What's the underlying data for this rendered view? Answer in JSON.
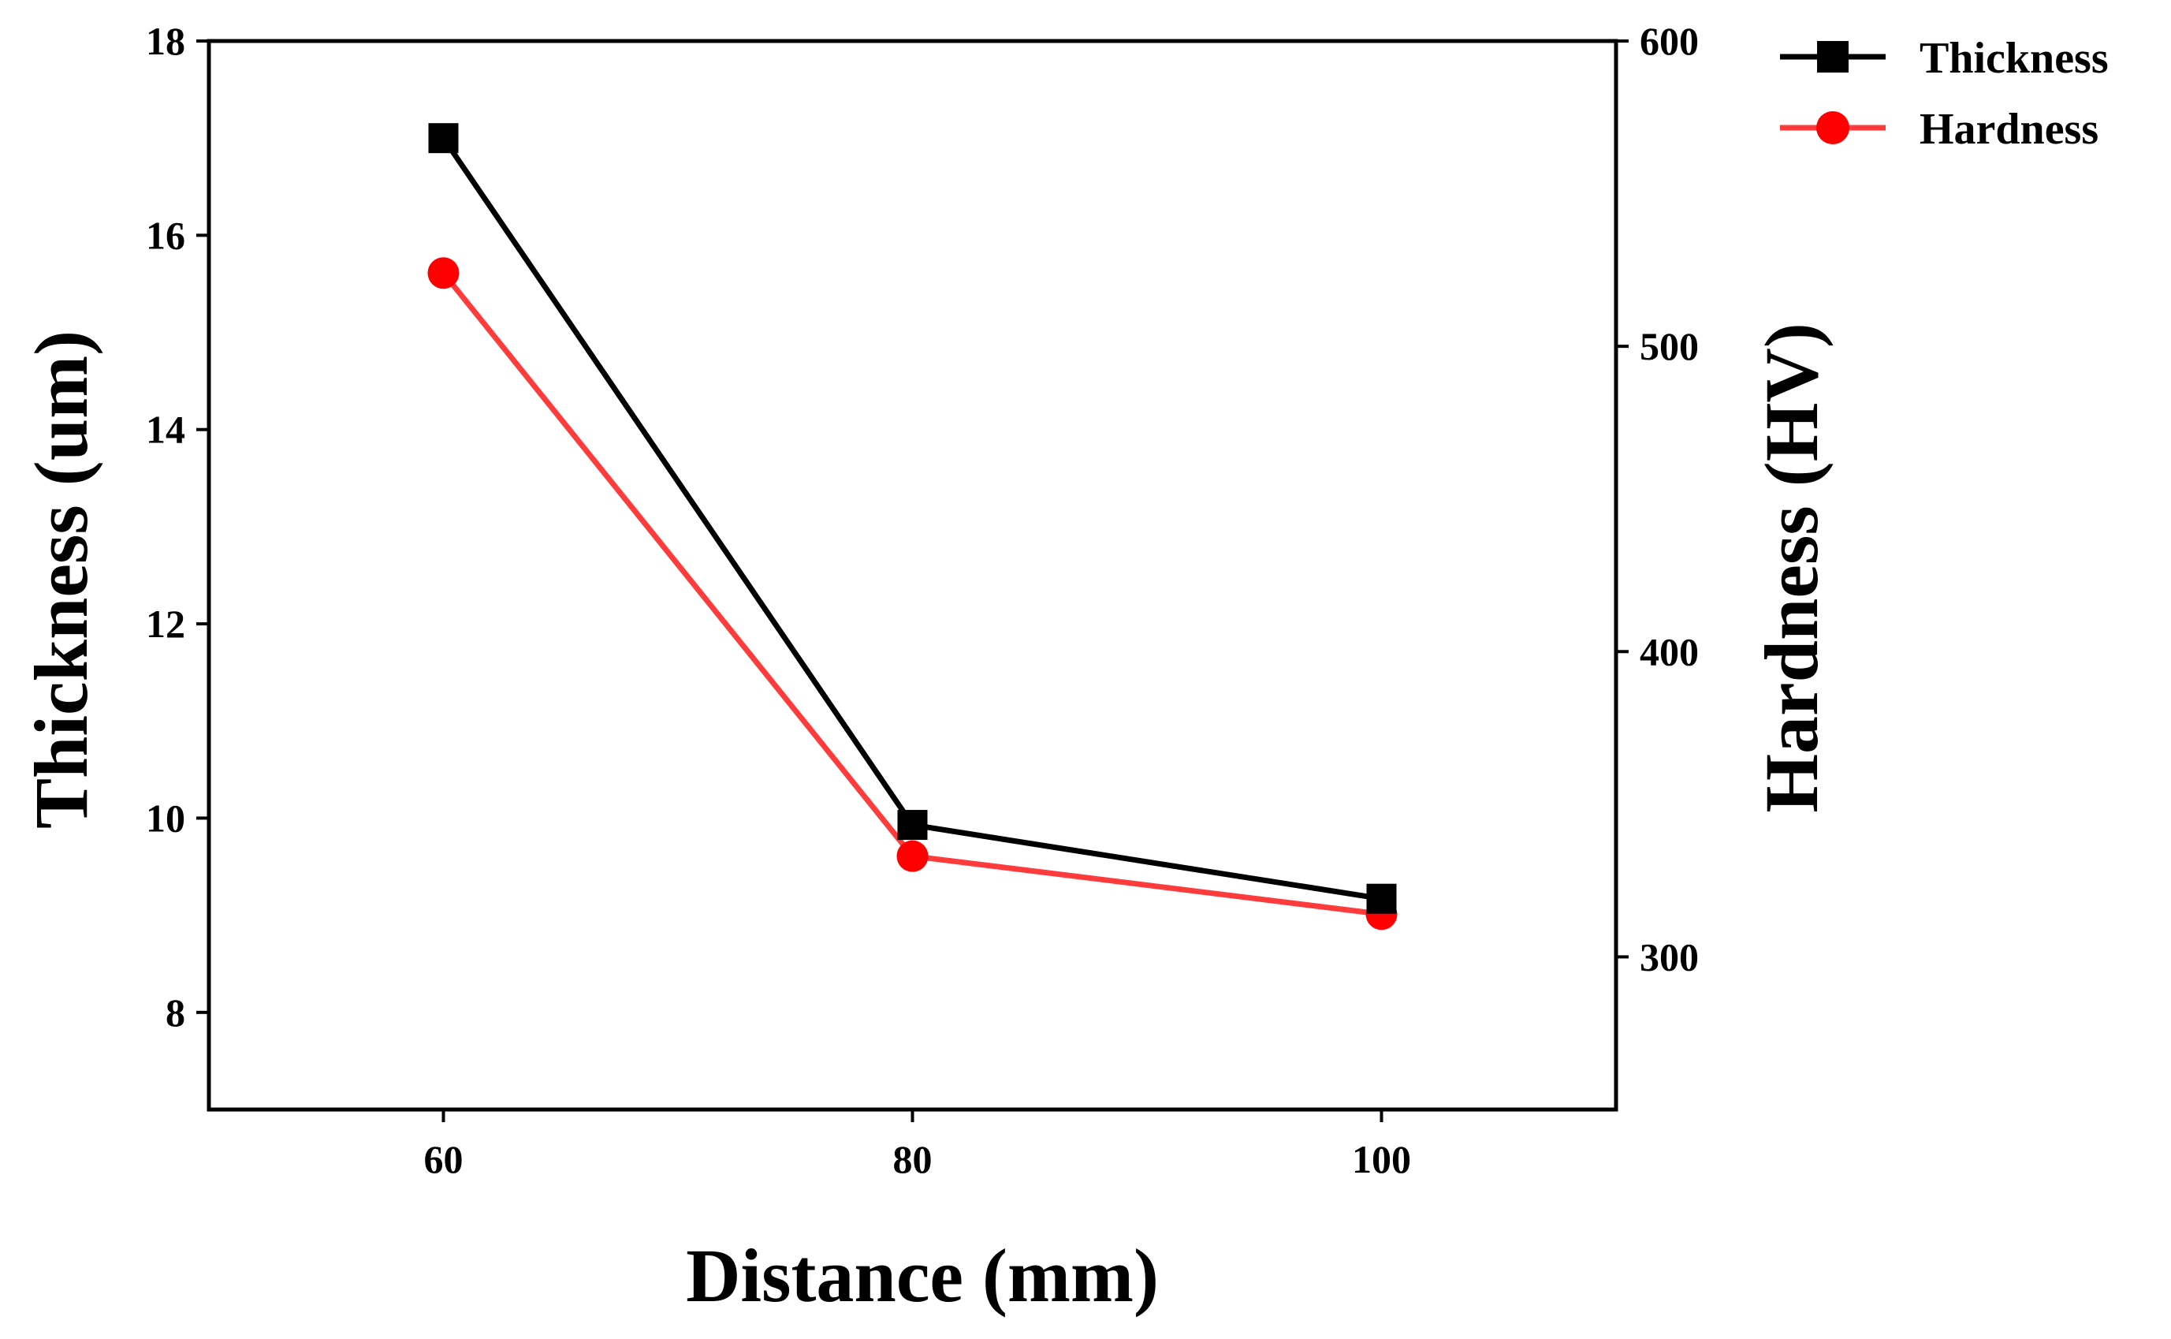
{
  "chart_data": {
    "type": "line",
    "title": "",
    "xlabel": "Distance (mm)",
    "ylabel": "Thickness (um)",
    "y2label": "Hardness (HV)",
    "x": [
      60,
      80,
      100
    ],
    "xlim": [
      50,
      110
    ],
    "xticks": [
      60,
      80,
      100
    ],
    "ylim": [
      7,
      18
    ],
    "yticks": [
      8,
      10,
      12,
      14,
      16,
      18
    ],
    "y2lim": [
      250,
      600
    ],
    "y2ticks": [
      300,
      400,
      500,
      600
    ],
    "grid": false,
    "legend_position": "top-right",
    "series": [
      {
        "name": "Thickness",
        "axis": "left",
        "marker": "square",
        "color": "#000000",
        "values": [
          17.0,
          9.93,
          9.17
        ]
      },
      {
        "name": "Hardness",
        "axis": "right",
        "marker": "circle",
        "color": "#ff3b3b",
        "values": [
          524,
          333,
          314
        ]
      }
    ]
  }
}
